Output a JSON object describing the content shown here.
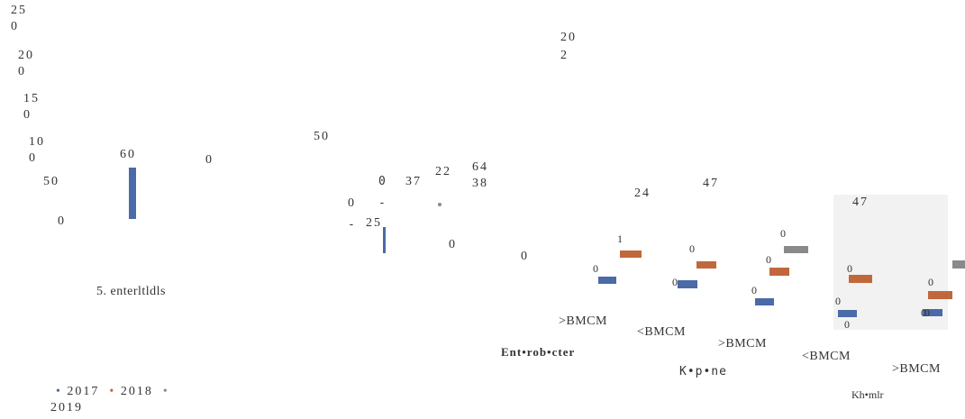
{
  "colors": {
    "2017": "#4a6aa8",
    "2018": "#c0683c",
    "2019": "#8a8a8a"
  },
  "axis_labels": [
    {
      "text": "25",
      "x": 12,
      "y": 4
    },
    {
      "text": "0",
      "x": 12,
      "y": 22
    },
    {
      "text": "20",
      "x": 20,
      "y": 54
    },
    {
      "text": "0",
      "x": 20,
      "y": 72
    },
    {
      "text": "15",
      "x": 26,
      "y": 102
    },
    {
      "text": "0",
      "x": 26,
      "y": 120
    },
    {
      "text": "10",
      "x": 32,
      "y": 150
    },
    {
      "text": "0",
      "x": 32,
      "y": 168
    },
    {
      "text": "50",
      "x": 48,
      "y": 194
    },
    {
      "text": "0",
      "x": 64,
      "y": 238
    }
  ],
  "chart_data": {
    "type": "bar",
    "title": "",
    "xlabel": "",
    "ylabel": "",
    "categories": [
      ">BMCM",
      "<BMCM",
      ">BMCM",
      "<BMCM",
      ">BMCM"
    ],
    "groups": [
      "Ent•rob•cter",
      "K•p•ne",
      "Kh•mlr"
    ],
    "series": [
      {
        "name": "2017",
        "values": [
          60,
          25,
          0,
          0,
          0
        ]
      },
      {
        "name": "2018",
        "values": [
          1,
          0,
          0,
          0,
          0
        ]
      },
      {
        "name": "2019",
        "values": [
          0,
          0,
          0,
          0,
          0
        ]
      }
    ],
    "legend": [
      "2017",
      "2018",
      "2019"
    ],
    "legend_position": "bottom-left"
  },
  "texts": {
    "subtitle": "5. enterltldls",
    "top_center_1": "20",
    "top_center_2": "2",
    "mid_50": "50",
    "v60": "60",
    "v0_a": "0",
    "v0_b": "0",
    "v0_c": "0",
    "v_dash": "-",
    "v_dash2": "-",
    "v37": "37",
    "v22": "22",
    "v25": "25",
    "v64": "64",
    "v38": "38",
    "v0_d": "0",
    "v0_e": "0",
    "v24": "24",
    "v47a": "47",
    "v47b": "47",
    "lab_1": "1",
    "lab_0a": "0",
    "lab_0b": "0",
    "lab_0c": "0",
    "lab_0d": "0",
    "lab_0e": "0",
    "lab_0f": "0",
    "lab_0g": "0",
    "lab_0h": "0",
    "lab_0i": "0",
    "lab_0j": "0",
    "lab_0k": "0",
    "lab_0l": "0",
    "cat1": ">BMCM",
    "cat2": "<BMCM",
    "cat3": ">BMCM",
    "cat4": "<BMCM",
    "cat5": ">BMCM",
    "group1": "Ent•rob•cter",
    "group2": "K•p•ne",
    "group3": "Kh•mlr",
    "legend_2017": "2017",
    "legend_2018": "2018",
    "legend_2019": "2019"
  }
}
